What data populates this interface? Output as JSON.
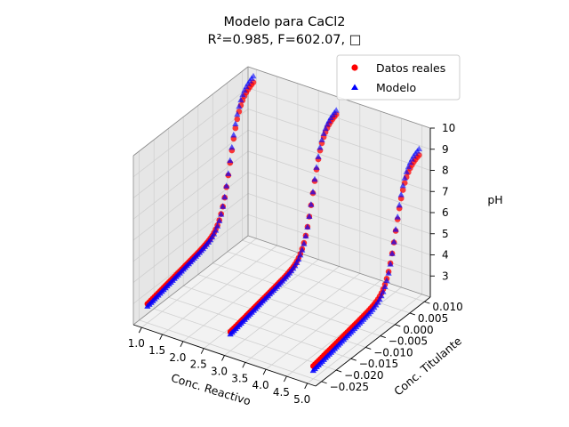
{
  "chart_data": {
    "type": "scatter",
    "projection": "3d",
    "title": "Modelo para CaCl2",
    "subtitle": "R²=0.985, F=602.07, □",
    "xlabel": "Conc. Reactivo",
    "ylabel": "Conc. Titulante",
    "zlabel": "pH",
    "xlim": [
      0.8,
      5.2
    ],
    "ylim": [
      -0.027,
      0.012
    ],
    "zlim": [
      2.0,
      10.0
    ],
    "x_ticks": [
      "1.0",
      "1.5",
      "2.0",
      "2.5",
      "3.0",
      "3.5",
      "4.0",
      "4.5",
      "5.0"
    ],
    "y_ticks": [
      "−0.025",
      "−0.020",
      "−0.015",
      "−0.010",
      "−0.005",
      "0.000",
      "0.005",
      "0.010"
    ],
    "z_ticks": [
      "3",
      "4",
      "5",
      "6",
      "7",
      "8",
      "9",
      "10"
    ],
    "grid": true,
    "legend_position": "top-right",
    "series": [
      {
        "name": "Datos reales",
        "marker": "circle",
        "color": "#ff0000",
        "curves": [
          {
            "x": 1.0,
            "y_start": -0.025,
            "y_end": 0.011,
            "ph_start": 2.9,
            "ph_end": 9.5,
            "points": 60
          },
          {
            "x": 3.0,
            "y_start": -0.025,
            "y_end": 0.011,
            "ph_start": 2.9,
            "ph_end": 9.3,
            "points": 60
          },
          {
            "x": 5.0,
            "y_start": -0.025,
            "y_end": 0.011,
            "ph_start": 2.6,
            "ph_end": 8.7,
            "points": 60
          }
        ]
      },
      {
        "name": "Modelo",
        "marker": "triangle",
        "color": "#0000ff",
        "curves": [
          {
            "x": 1.0,
            "y_start": -0.025,
            "y_end": 0.011,
            "ph_start": 2.8,
            "ph_end": 9.8,
            "points": 60
          },
          {
            "x": 3.0,
            "y_start": -0.025,
            "y_end": 0.011,
            "ph_start": 2.8,
            "ph_end": 9.5,
            "points": 60
          },
          {
            "x": 5.0,
            "y_start": -0.025,
            "y_end": 0.011,
            "ph_start": 2.4,
            "ph_end": 9.0,
            "points": 60
          }
        ]
      }
    ]
  }
}
